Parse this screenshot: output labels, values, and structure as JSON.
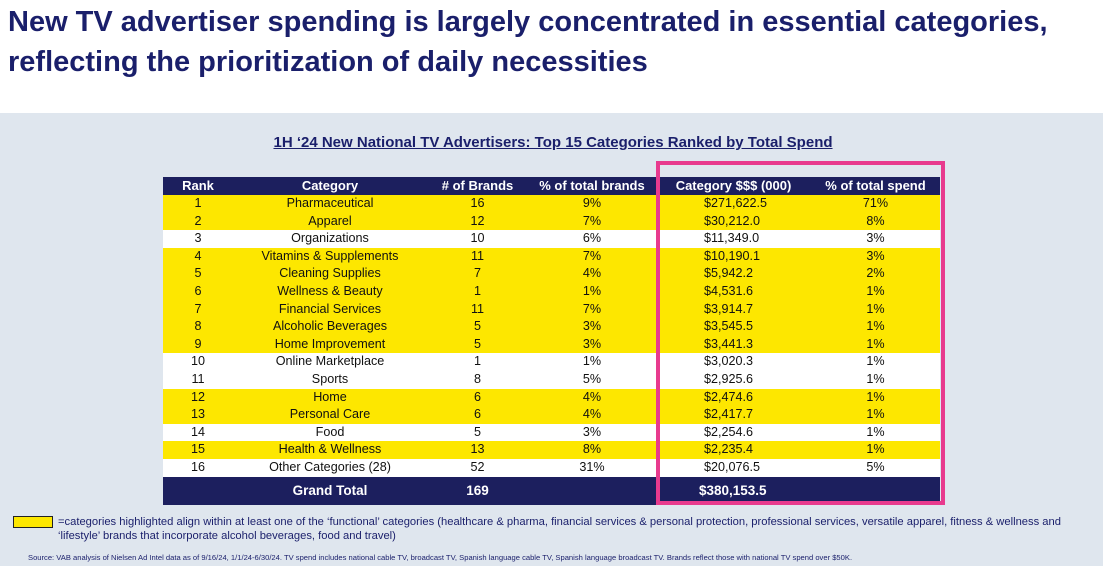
{
  "headline": "New TV advertiser spending is largely concentrated in essential categories, reflecting the prioritization of daily necessities",
  "chart_data": {
    "type": "table",
    "title": "1H ‘24 New National TV Advertisers: Top 15 Categories Ranked by Total Spend",
    "columns": [
      "Rank",
      "Category",
      "# of Brands",
      "% of total brands",
      "Category $$$ (000)",
      "% of total spend"
    ],
    "rows": [
      {
        "rank": "1",
        "category": "Pharmaceutical",
        "brands": "16",
        "pct_brands": "9%",
        "dollars": "$271,622.5",
        "pct_spend": "71%",
        "highlighted": true
      },
      {
        "rank": "2",
        "category": "Apparel",
        "brands": "12",
        "pct_brands": "7%",
        "dollars": "$30,212.0",
        "pct_spend": "8%",
        "highlighted": true
      },
      {
        "rank": "3",
        "category": "Organizations",
        "brands": "10",
        "pct_brands": "6%",
        "dollars": "$11,349.0",
        "pct_spend": "3%",
        "highlighted": false
      },
      {
        "rank": "4",
        "category": "Vitamins & Supplements",
        "brands": "11",
        "pct_brands": "7%",
        "dollars": "$10,190.1",
        "pct_spend": "3%",
        "highlighted": true
      },
      {
        "rank": "5",
        "category": "Cleaning Supplies",
        "brands": "7",
        "pct_brands": "4%",
        "dollars": "$5,942.2",
        "pct_spend": "2%",
        "highlighted": true
      },
      {
        "rank": "6",
        "category": "Wellness & Beauty",
        "brands": "1",
        "pct_brands": "1%",
        "dollars": "$4,531.6",
        "pct_spend": "1%",
        "highlighted": true
      },
      {
        "rank": "7",
        "category": "Financial Services",
        "brands": "11",
        "pct_brands": "7%",
        "dollars": "$3,914.7",
        "pct_spend": "1%",
        "highlighted": true
      },
      {
        "rank": "8",
        "category": "Alcoholic Beverages",
        "brands": "5",
        "pct_brands": "3%",
        "dollars": "$3,545.5",
        "pct_spend": "1%",
        "highlighted": true
      },
      {
        "rank": "9",
        "category": "Home Improvement",
        "brands": "5",
        "pct_brands": "3%",
        "dollars": "$3,441.3",
        "pct_spend": "1%",
        "highlighted": true
      },
      {
        "rank": "10",
        "category": "Online Marketplace",
        "brands": "1",
        "pct_brands": "1%",
        "dollars": "$3,020.3",
        "pct_spend": "1%",
        "highlighted": false
      },
      {
        "rank": "11",
        "category": "Sports",
        "brands": "8",
        "pct_brands": "5%",
        "dollars": "$2,925.6",
        "pct_spend": "1%",
        "highlighted": false
      },
      {
        "rank": "12",
        "category": "Home",
        "brands": "6",
        "pct_brands": "4%",
        "dollars": "$2,474.6",
        "pct_spend": "1%",
        "highlighted": true
      },
      {
        "rank": "13",
        "category": "Personal Care",
        "brands": "6",
        "pct_brands": "4%",
        "dollars": "$2,417.7",
        "pct_spend": "1%",
        "highlighted": true
      },
      {
        "rank": "14",
        "category": "Food",
        "brands": "5",
        "pct_brands": "3%",
        "dollars": "$2,254.6",
        "pct_spend": "1%",
        "highlighted": false
      },
      {
        "rank": "15",
        "category": "Health & Wellness",
        "brands": "13",
        "pct_brands": "8%",
        "dollars": "$2,235.4",
        "pct_spend": "1%",
        "highlighted": true
      },
      {
        "rank": "16",
        "category": "Other Categories (28)",
        "brands": "52",
        "pct_brands": "31%",
        "dollars": "$20,076.5",
        "pct_spend": "5%",
        "highlighted": false
      }
    ],
    "total": {
      "label": "Grand Total",
      "brands": "169",
      "dollars": "$380,153.5"
    },
    "highlight_color": "#fde700",
    "header_color": "#1c1f5e",
    "emphasis_box_color": "#e83a8e",
    "emphasized_columns": [
      "Category $$$ (000)",
      "% of total spend"
    ]
  },
  "legend": {
    "swatch_color": "#fde700",
    "text": "=categories highlighted align within at least one of the ‘functional’ categories (healthcare & pharma, financial services & personal protection, professional services, versatile apparel, fitness & wellness and ‘lifestyle’ brands that incorporate alcohol beverages, food and travel)"
  },
  "source": "Source:  VAB analysis of Nielsen Ad Intel data as of 9/16/24, 1/1/24-6/30/24. TV spend includes national cable TV, broadcast TV, Spanish language cable TV, Spanish language broadcast TV. Brands reflect those with national TV spend over $50K."
}
